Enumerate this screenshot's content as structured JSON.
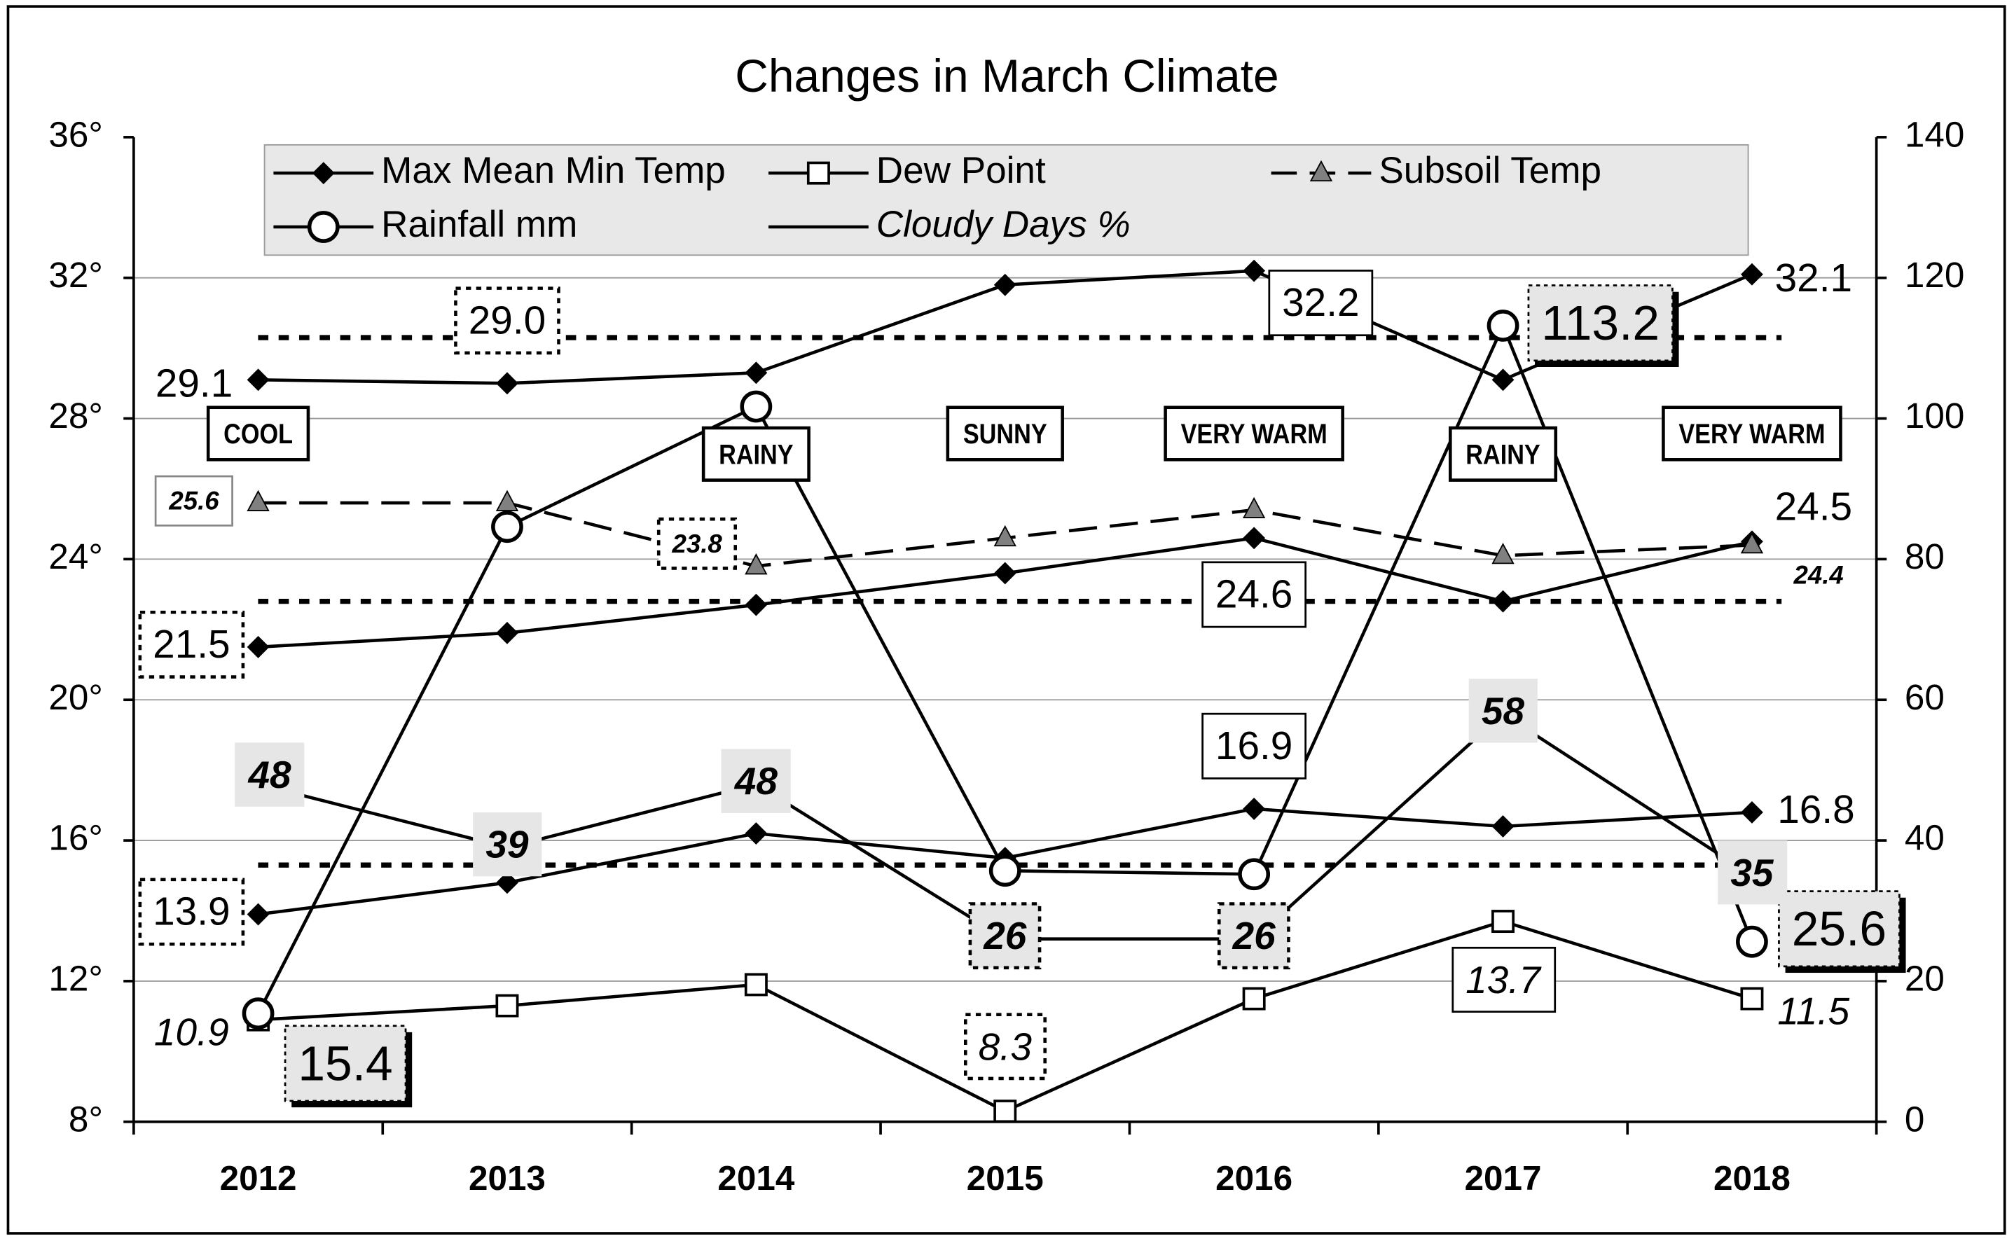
{
  "chart_data": {
    "type": "line",
    "title": "Changes in March Climate",
    "categories": [
      "2012",
      "2013",
      "2014",
      "2015",
      "2016",
      "2017",
      "2018"
    ],
    "ylim": [
      8,
      36
    ],
    "yticks": [
      {
        "value": 8,
        "label": "8°"
      },
      {
        "value": 12,
        "label": "12°"
      },
      {
        "value": 16,
        "label": "16°"
      },
      {
        "value": 20,
        "label": "20°"
      },
      {
        "value": 24,
        "label": "24°"
      },
      {
        "value": 28,
        "label": "28°"
      },
      {
        "value": 32,
        "label": "32°"
      },
      {
        "value": 36,
        "label": "36°"
      }
    ],
    "y2lim": [
      0,
      140
    ],
    "y2ticks": [
      0,
      20,
      40,
      60,
      80,
      100,
      120,
      140
    ],
    "grid": true,
    "reference_lines": [
      30.3,
      22.8,
      15.3
    ],
    "annotations": [
      "COOL",
      null,
      "RAINY",
      "SUNNY",
      "VERY WARM",
      "RAINY",
      "VERY WARM"
    ],
    "series": [
      {
        "name": "Max Mean Min Temp",
        "color": "#000000",
        "marker": "diamond",
        "values": [
          29.1,
          29.0,
          29.3,
          31.8,
          32.2,
          29.1,
          32.1
        ],
        "value_labels": [
          "29.1",
          "29.0",
          null,
          null,
          "32.2",
          null,
          "32.1"
        ]
      },
      {
        "color": "#000000",
        "marker": "diamond",
        "values": [
          21.5,
          21.9,
          22.7,
          23.6,
          24.6,
          22.8,
          24.5
        ],
        "value_labels": [
          "21.5",
          null,
          null,
          null,
          "24.6",
          null,
          "24.5"
        ]
      },
      {
        "color": "#000000",
        "marker": "diamond",
        "values": [
          13.9,
          14.8,
          16.2,
          15.5,
          16.9,
          16.4,
          16.8
        ],
        "value_labels": [
          "13.9",
          null,
          null,
          null,
          "16.9",
          null,
          "16.8"
        ]
      },
      {
        "name": "Dew Point",
        "color": "#000000",
        "marker": "square",
        "values": [
          10.9,
          11.3,
          11.9,
          8.3,
          11.5,
          13.7,
          11.5
        ],
        "value_labels": [
          "10.9",
          null,
          null,
          "8.3",
          null,
          "13.7",
          "11.5"
        ]
      },
      {
        "name": "Subsoil Temp",
        "color": "#808080",
        "marker": "triangle",
        "dash": true,
        "values": [
          25.6,
          25.6,
          23.8,
          24.6,
          25.4,
          24.1,
          24.4
        ],
        "value_labels": [
          "25.6",
          null,
          "23.8",
          null,
          null,
          null,
          "24.4"
        ]
      },
      {
        "name": "Rainfall mm",
        "color": "#000000",
        "marker": "circle",
        "axis": "y2",
        "values": [
          15.4,
          84.6,
          101.7,
          35.7,
          35.2,
          113.2,
          25.6
        ],
        "value_labels": [
          "15.4",
          null,
          null,
          null,
          null,
          "113.2",
          "25.6"
        ]
      },
      {
        "name": "Cloudy Days %",
        "color": "#000000",
        "axis": "y2",
        "values": [
          48,
          39,
          48,
          26,
          26,
          58,
          35
        ],
        "value_labels": [
          "48",
          "39",
          "48",
          "26",
          "26",
          "58",
          "35"
        ]
      }
    ]
  }
}
